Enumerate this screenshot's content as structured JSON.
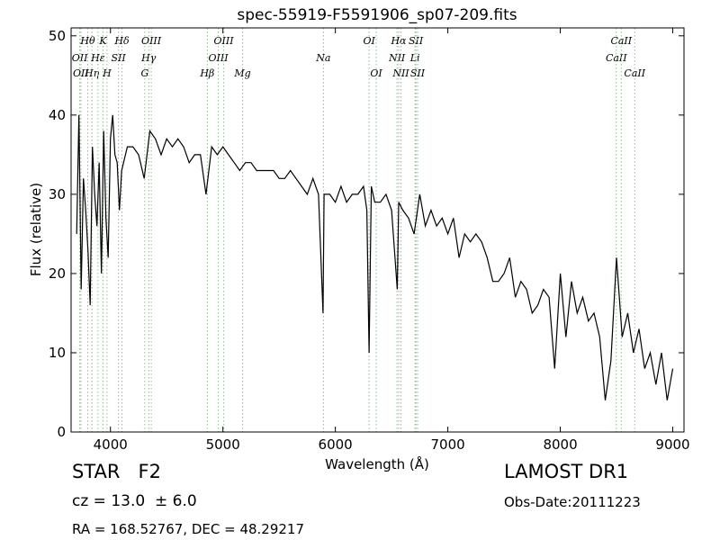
{
  "chart_data": {
    "type": "line",
    "title": "spec-55919-F5591906_sp07-209.fits",
    "xlabel": "Wavelength (Å)",
    "ylabel": "Flux (relative)",
    "xlim": [
      3650,
      9100
    ],
    "ylim": [
      0,
      51
    ],
    "xticks": [
      4000,
      5000,
      6000,
      7000,
      8000,
      9000
    ],
    "yticks": [
      0,
      10,
      20,
      30,
      40,
      50
    ],
    "grid": false,
    "line_color": "#000000",
    "marker_color": "#7fc97f",
    "series": [
      {
        "x": [
          3700,
          3720,
          3740,
          3760,
          3780,
          3800,
          3820,
          3840,
          3860,
          3880,
          3900,
          3920,
          3940,
          3960,
          3980,
          4000,
          4020,
          4040,
          4060,
          4080,
          4100,
          4150,
          4200,
          4250,
          4300,
          4350,
          4400,
          4450,
          4500,
          4550,
          4600,
          4650,
          4700,
          4750,
          4800,
          4850,
          4900,
          4950,
          5000,
          5050,
          5100,
          5150,
          5200,
          5250,
          5300,
          5350,
          5400,
          5450,
          5500,
          5550,
          5600,
          5650,
          5700,
          5750,
          5800,
          5850,
          5890,
          5900,
          5950,
          6000,
          6050,
          6100,
          6150,
          6200,
          6250,
          6280,
          6300,
          6320,
          6350,
          6400,
          6450,
          6500,
          6550,
          6563,
          6600,
          6650,
          6700,
          6750,
          6800,
          6850,
          6900,
          6950,
          7000,
          7050,
          7100,
          7150,
          7200,
          7250,
          7300,
          7350,
          7400,
          7450,
          7500,
          7550,
          7600,
          7650,
          7700,
          7750,
          7800,
          7850,
          7900,
          7950,
          8000,
          8050,
          8100,
          8150,
          8200,
          8250,
          8300,
          8350,
          8400,
          8450,
          8500,
          8550,
          8600,
          8650,
          8700,
          8750,
          8800,
          8850,
          8900,
          8950,
          9000
        ],
        "y": [
          25,
          40,
          18,
          32,
          28,
          23,
          16,
          36,
          30,
          26,
          34,
          20,
          38,
          27,
          22,
          37,
          40,
          35,
          34,
          28,
          33,
          36,
          36,
          35,
          32,
          38,
          37,
          35,
          37,
          36,
          37,
          36,
          34,
          35,
          35,
          30,
          36,
          35,
          36,
          35,
          34,
          33,
          34,
          34,
          33,
          33,
          33,
          33,
          32,
          32,
          33,
          32,
          31,
          30,
          32,
          30,
          15,
          30,
          30,
          29,
          31,
          29,
          30,
          30,
          31,
          28,
          10,
          31,
          29,
          29,
          30,
          28,
          18,
          29,
          28,
          27,
          25,
          30,
          26,
          28,
          26,
          27,
          25,
          27,
          22,
          25,
          24,
          25,
          24,
          22,
          19,
          19,
          20,
          22,
          17,
          19,
          18,
          15,
          16,
          18,
          17,
          8,
          20,
          12,
          19,
          15,
          17,
          14,
          15,
          12,
          4,
          9,
          22,
          12,
          15,
          10,
          13,
          8,
          10,
          6,
          10,
          4,
          8
        ]
      }
    ],
    "line_markers": [
      {
        "name": "OII",
        "wavelength": 3727,
        "row": 2
      },
      {
        "name": "OII",
        "wavelength": 3737,
        "row": 3
      },
      {
        "name": "Hθ",
        "wavelength": 3798,
        "row": 1
      },
      {
        "name": "Hη",
        "wavelength": 3835,
        "row": 3
      },
      {
        "name": "Hε",
        "wavelength": 3889,
        "row": 2
      },
      {
        "name": "K",
        "wavelength": 3934,
        "row": 1
      },
      {
        "name": "H",
        "wavelength": 3969,
        "row": 3
      },
      {
        "name": "SII",
        "wavelength": 4071,
        "row": 2
      },
      {
        "name": "Hδ",
        "wavelength": 4102,
        "row": 1
      },
      {
        "name": "Hγ",
        "wavelength": 4340,
        "row": 2
      },
      {
        "name": "G",
        "wavelength": 4305,
        "row": 3
      },
      {
        "name": "OIII",
        "wavelength": 4363,
        "row": 1
      },
      {
        "name": "Hβ",
        "wavelength": 4861,
        "row": 3
      },
      {
        "name": "OIII",
        "wavelength": 4959,
        "row": 2
      },
      {
        "name": "OIII",
        "wavelength": 5007,
        "row": 1
      },
      {
        "name": "Mg",
        "wavelength": 5175,
        "row": 3
      },
      {
        "name": "Na",
        "wavelength": 5894,
        "row": 2
      },
      {
        "name": "OI",
        "wavelength": 6300,
        "row": 1
      },
      {
        "name": "OI",
        "wavelength": 6363,
        "row": 3
      },
      {
        "name": "NII",
        "wavelength": 6548,
        "row": 2
      },
      {
        "name": "Hα",
        "wavelength": 6563,
        "row": 1
      },
      {
        "name": "NII",
        "wavelength": 6583,
        "row": 3
      },
      {
        "name": "Li",
        "wavelength": 6708,
        "row": 2
      },
      {
        "name": "SII",
        "wavelength": 6716,
        "row": 1
      },
      {
        "name": "SII",
        "wavelength": 6731,
        "row": 3
      },
      {
        "name": "CaII",
        "wavelength": 8498,
        "row": 2
      },
      {
        "name": "CaII",
        "wavelength": 8542,
        "row": 1
      },
      {
        "name": "CaII",
        "wavelength": 8662,
        "row": 3
      }
    ]
  },
  "info": {
    "object_class": "STAR   F2",
    "redshift": "cz = 13.0  ± 6.0",
    "coordinates": "RA = 168.52767, DEC = 48.29217",
    "survey": "LAMOST DR1",
    "obs_date": "Obs-Date:20111223"
  }
}
